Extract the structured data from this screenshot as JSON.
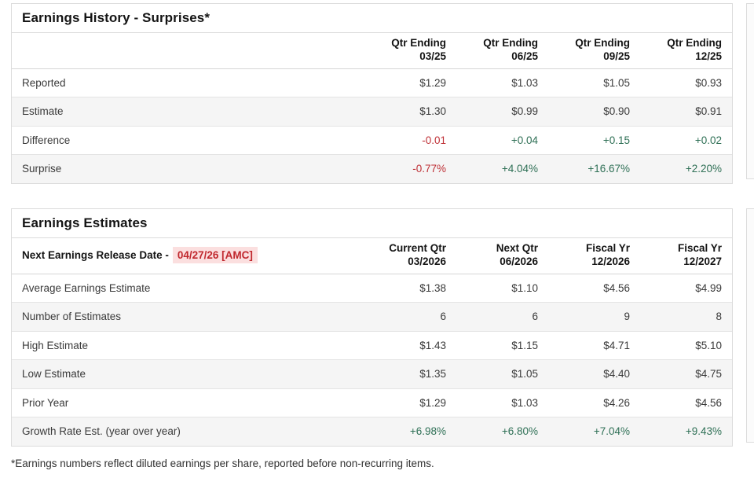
{
  "colors": {
    "positive_text": "#2f7056",
    "negative_text": "#bf3137",
    "release_date_text": "#c0272d",
    "release_date_bg": "#fbdfdf",
    "row_stripe_bg": "#f5f5f5",
    "card_border": "#dcdcdc",
    "heading_text": "#141414",
    "body_text": "#3a3a3a"
  },
  "history": {
    "title": "Earnings History - Surprises*",
    "columns": [
      {
        "line1": "Qtr Ending",
        "line2": "03/25"
      },
      {
        "line1": "Qtr Ending",
        "line2": "06/25"
      },
      {
        "line1": "Qtr Ending",
        "line2": "09/25"
      },
      {
        "line1": "Qtr Ending",
        "line2": "12/25"
      }
    ],
    "rows": [
      {
        "label": "Reported",
        "cells": [
          {
            "v": "$1.29",
            "tone": "none"
          },
          {
            "v": "$1.03",
            "tone": "none"
          },
          {
            "v": "$1.05",
            "tone": "none"
          },
          {
            "v": "$0.93",
            "tone": "none"
          }
        ]
      },
      {
        "label": "Estimate",
        "cells": [
          {
            "v": "$1.30",
            "tone": "none"
          },
          {
            "v": "$0.99",
            "tone": "none"
          },
          {
            "v": "$0.90",
            "tone": "none"
          },
          {
            "v": "$0.91",
            "tone": "none"
          }
        ]
      },
      {
        "label": "Difference",
        "cells": [
          {
            "v": "-0.01",
            "tone": "neg"
          },
          {
            "v": "+0.04",
            "tone": "pos"
          },
          {
            "v": "+0.15",
            "tone": "pos"
          },
          {
            "v": "+0.02",
            "tone": "pos"
          }
        ]
      },
      {
        "label": "Surprise",
        "cells": [
          {
            "v": "-0.77%",
            "tone": "neg"
          },
          {
            "v": "+4.04%",
            "tone": "pos"
          },
          {
            "v": "+16.67%",
            "tone": "pos"
          },
          {
            "v": "+2.20%",
            "tone": "pos"
          }
        ]
      }
    ]
  },
  "estimates": {
    "title": "Earnings Estimates",
    "release_label": "Next Earnings Release Date -",
    "release_date": "04/27/26 [AMC]",
    "columns": [
      {
        "line1": "Current Qtr",
        "line2": "03/2026"
      },
      {
        "line1": "Next Qtr",
        "line2": "06/2026"
      },
      {
        "line1": "Fiscal Yr",
        "line2": "12/2026"
      },
      {
        "line1": "Fiscal Yr",
        "line2": "12/2027"
      }
    ],
    "rows": [
      {
        "label": "Average Earnings Estimate",
        "cells": [
          {
            "v": "$1.38",
            "tone": "none"
          },
          {
            "v": "$1.10",
            "tone": "none"
          },
          {
            "v": "$4.56",
            "tone": "none"
          },
          {
            "v": "$4.99",
            "tone": "none"
          }
        ]
      },
      {
        "label": "Number of Estimates",
        "cells": [
          {
            "v": "6",
            "tone": "none"
          },
          {
            "v": "6",
            "tone": "none"
          },
          {
            "v": "9",
            "tone": "none"
          },
          {
            "v": "8",
            "tone": "none"
          }
        ]
      },
      {
        "label": "High Estimate",
        "cells": [
          {
            "v": "$1.43",
            "tone": "none"
          },
          {
            "v": "$1.15",
            "tone": "none"
          },
          {
            "v": "$4.71",
            "tone": "none"
          },
          {
            "v": "$5.10",
            "tone": "none"
          }
        ]
      },
      {
        "label": "Low Estimate",
        "cells": [
          {
            "v": "$1.35",
            "tone": "none"
          },
          {
            "v": "$1.05",
            "tone": "none"
          },
          {
            "v": "$4.40",
            "tone": "none"
          },
          {
            "v": "$4.75",
            "tone": "none"
          }
        ]
      },
      {
        "label": "Prior Year",
        "cells": [
          {
            "v": "$1.29",
            "tone": "none"
          },
          {
            "v": "$1.03",
            "tone": "none"
          },
          {
            "v": "$4.26",
            "tone": "none"
          },
          {
            "v": "$4.56",
            "tone": "none"
          }
        ]
      },
      {
        "label": "Growth Rate Est. (year over year)",
        "cells": [
          {
            "v": "+6.98%",
            "tone": "pos"
          },
          {
            "v": "+6.80%",
            "tone": "pos"
          },
          {
            "v": "+7.04%",
            "tone": "pos"
          },
          {
            "v": "+9.43%",
            "tone": "pos"
          }
        ]
      }
    ]
  },
  "footnote": "*Earnings numbers reflect diluted earnings per share, reported before non-recurring items."
}
